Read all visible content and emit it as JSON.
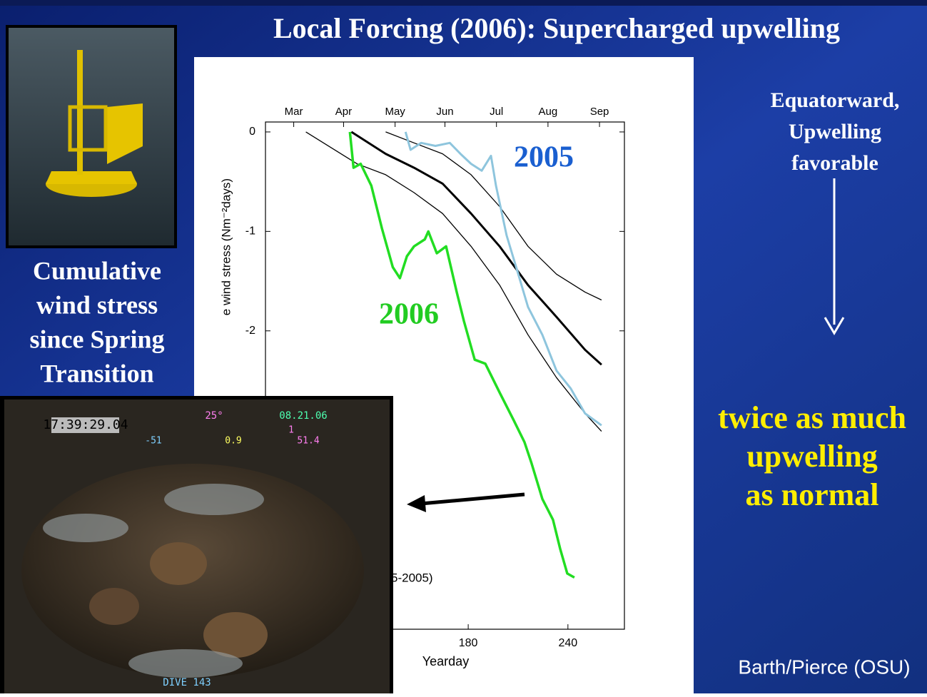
{
  "slide": {
    "title": "Local Forcing (2006): Supercharged upwelling",
    "left_caption": [
      "Cumulative",
      "wind stress",
      "since Spring",
      "Transition"
    ],
    "right_top": [
      "Equatorward,",
      "Upwelling",
      "favorable"
    ],
    "right_bottom": [
      "twice as much",
      "upwelling",
      "as normal"
    ],
    "credit": "Barth/Pierce (OSU)",
    "photo_overlay": [
      "17:39:29.04",
      "25°",
      "08.21.06",
      "-51",
      "0.9",
      "51.4",
      "1",
      "DIVE 143"
    ]
  },
  "chart_data": {
    "type": "line",
    "xlabel": "Yearday",
    "ylabel": "e wind stress (Nm⁻²days)",
    "legend_fragment": "5-2005)",
    "xlim": [
      58,
      274
    ],
    "ylim": [
      -5,
      0.1
    ],
    "xticks": [
      180,
      240
    ],
    "yticks": [
      0,
      -1,
      -2
    ],
    "x2ticks": [
      {
        "value": 75,
        "label": "Mar"
      },
      {
        "value": 105,
        "label": "Apr"
      },
      {
        "value": 136,
        "label": "May"
      },
      {
        "value": 166,
        "label": "Jun"
      },
      {
        "value": 197,
        "label": "Jul"
      },
      {
        "value": 228,
        "label": "Aug"
      },
      {
        "value": 259,
        "label": "Sep"
      }
    ],
    "series": [
      {
        "color": "#000000",
        "width": 3,
        "x": [
          109.7,
          130.3,
          147.4,
          164.6,
          181.7,
          198.9,
          216,
          233.1,
          250.3,
          260.2
        ],
        "values": [
          0,
          -0.22,
          -0.36,
          -0.52,
          -0.82,
          -1.15,
          -1.54,
          -1.86,
          -2.19,
          -2.34
        ]
      },
      {
        "color": "#000000",
        "width": 1.3,
        "x": [
          130.3,
          147.4,
          164.6,
          181.7,
          198.9,
          216,
          233.1,
          250.3,
          260.2
        ],
        "values": [
          0,
          -0.11,
          -0.22,
          -0.43,
          -0.75,
          -1.15,
          -1.43,
          -1.61,
          -1.69
        ]
      },
      {
        "color": "#000000",
        "width": 1.3,
        "x": [
          82.3,
          113.1,
          130.3,
          147.4,
          164.6,
          181.7,
          198.9,
          216,
          233.1,
          250.3,
          260.2
        ],
        "values": [
          0,
          -0.32,
          -0.43,
          -0.61,
          -0.82,
          -1.15,
          -1.54,
          -2.04,
          -2.47,
          -2.83,
          -3.01
        ]
      },
      {
        "name": "2005",
        "color": "#8ec5dd",
        "width": 3,
        "label_color": "#1a5fd0",
        "x": [
          142.3,
          145.3,
          151.7,
          160.3,
          168.9,
          175.3,
          181.7,
          188.1,
          193.7,
          196.7,
          203.1,
          209.6,
          216,
          224.6,
          233.1,
          241.7,
          250.3,
          260.2
        ],
        "values": [
          0,
          -0.18,
          -0.11,
          -0.14,
          -0.11,
          -0.22,
          -0.32,
          -0.39,
          -0.24,
          -0.54,
          -1.04,
          -1.4,
          -1.76,
          -2.04,
          -2.4,
          -2.58,
          -2.83,
          -2.95
        ]
      },
      {
        "name": "2006",
        "color": "#22dd22",
        "width": 3.5,
        "label_color": "#22cc22",
        "x": [
          108.8,
          111,
          115.3,
          121.7,
          128.1,
          134.6,
          138.9,
          143.1,
          147.4,
          153.9,
          156,
          161.1,
          166.7,
          173.1,
          177.4,
          183.9,
          190.3,
          198.9,
          207.4,
          213.9,
          218.1,
          224.6,
          231,
          235.3,
          239.6,
          243.9
        ],
        "values": [
          0,
          -0.36,
          -0.32,
          -0.54,
          -0.97,
          -1.36,
          -1.47,
          -1.25,
          -1.15,
          -1.08,
          -1,
          -1.22,
          -1.15,
          -1.61,
          -1.9,
          -2.29,
          -2.33,
          -2.62,
          -2.9,
          -3.12,
          -3.33,
          -3.69,
          -3.9,
          -4.19,
          -4.44,
          -4.48
        ]
      }
    ]
  }
}
